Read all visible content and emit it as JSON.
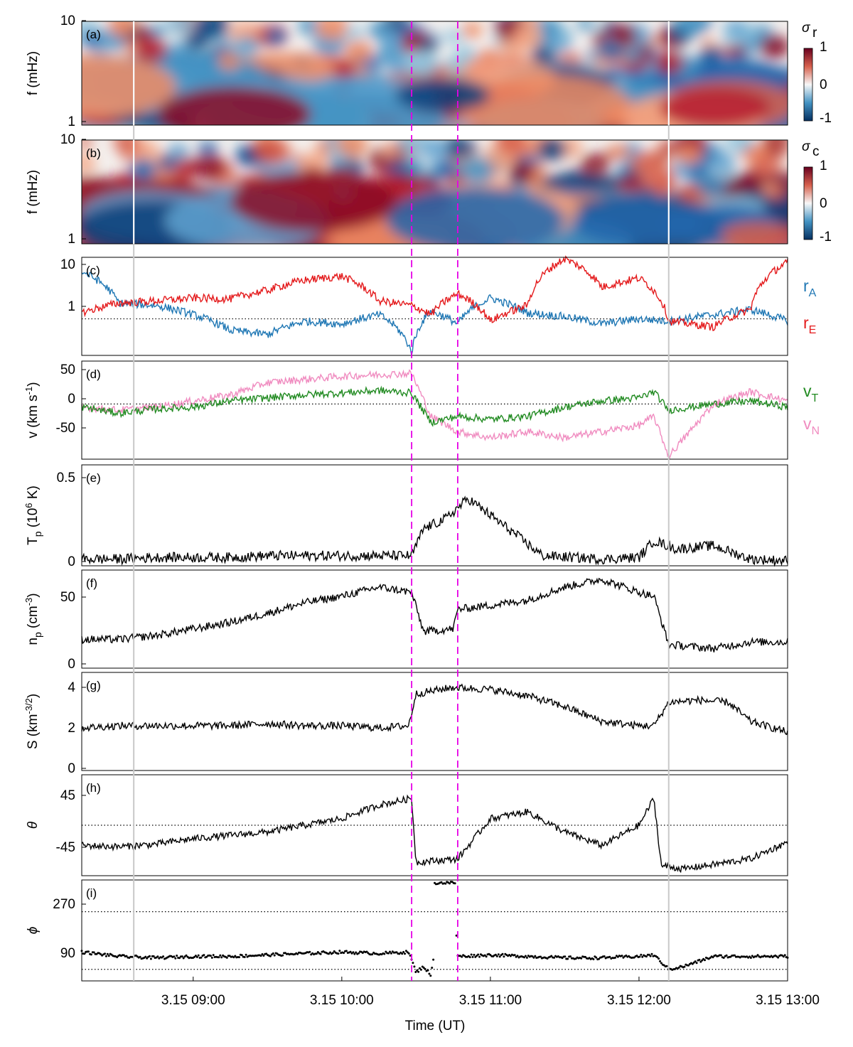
{
  "figure": {
    "xlabel": "Time (UT)",
    "x_ticks": [
      "3.15 09:00",
      "3.15 10:00",
      "3.15 11:00",
      "3.15 12:00",
      "3.15 13:00"
    ],
    "x_tick_hours": [
      9.0,
      10.0,
      11.0,
      12.0,
      13.0
    ],
    "x_range_hours": [
      8.25,
      13.0
    ],
    "magenta_dashed_lines_hours": [
      10.47,
      10.78
    ],
    "gray_vertical_lines_hours": [
      8.6,
      12.2
    ]
  },
  "panels": {
    "a": {
      "label": "(a)",
      "ylabel": "f (mHz)",
      "yticks": [
        "10",
        "1"
      ],
      "cbar_title": "σ",
      "cbar_sub": "r",
      "cbar_ticks": [
        "1",
        "0",
        "-1"
      ]
    },
    "b": {
      "label": "(b)",
      "ylabel": "f (mHz)",
      "yticks": [
        "10",
        "1"
      ],
      "cbar_title": "σ",
      "cbar_sub": "c",
      "cbar_ticks": [
        "1",
        "0",
        "-1"
      ]
    },
    "c": {
      "label": "(c)",
      "yticks": [
        "10",
        "1"
      ],
      "legend": [
        {
          "main": "r",
          "sub": "A",
          "color": "#1f77b4"
        },
        {
          "main": "r",
          "sub": "E",
          "color": "#e41a1c"
        }
      ]
    },
    "d": {
      "label": "(d)",
      "ylabel": "v (km s",
      "ylabel_sup": "-1",
      "ylabel_end": ")",
      "yticks": [
        "50",
        "0",
        "-50"
      ],
      "legend": [
        {
          "main": "v",
          "sub": "T",
          "color": "#228b22"
        },
        {
          "main": "v",
          "sub": "N",
          "color": "#f08cc0"
        }
      ]
    },
    "e": {
      "label": "(e)",
      "ylabel": "T",
      "ylabel_sub": "p",
      "ylabel_rest": " (10",
      "ylabel_sup": "6",
      "ylabel_end": " K)",
      "yticks": [
        "0.5",
        "0"
      ]
    },
    "f": {
      "label": "(f)",
      "ylabel": "n",
      "ylabel_sub": "p",
      "ylabel_rest": " (cm",
      "ylabel_sup": "-3",
      "ylabel_end": ")",
      "yticks": [
        "50",
        "0"
      ]
    },
    "g": {
      "label": "(g)",
      "ylabel": "S (km",
      "ylabel_sup": "-3/2",
      "ylabel_end": ")",
      "yticks": [
        "4",
        "2",
        "0"
      ]
    },
    "h": {
      "label": "(h)",
      "ylabel": "θ",
      "yticks": [
        "45",
        "-45"
      ]
    },
    "i": {
      "label": "(i)",
      "ylabel": "ϕ",
      "yticks": [
        "270",
        "90"
      ]
    }
  },
  "chart_data": [
    {
      "panel": "a",
      "type": "heatmap",
      "title": "",
      "xlabel": "",
      "ylabel": "f (mHz)",
      "ylim": [
        1,
        10
      ],
      "yscale": "log",
      "colorbar": "σ_r",
      "clim": [
        -1,
        1
      ],
      "colormap": "red-white-blue"
    },
    {
      "panel": "b",
      "type": "heatmap",
      "title": "",
      "xlabel": "",
      "ylabel": "f (mHz)",
      "ylim": [
        1,
        10
      ],
      "yscale": "log",
      "colorbar": "σ_c",
      "clim": [
        -1,
        1
      ],
      "colormap": "red-white-blue"
    },
    {
      "panel": "c",
      "type": "line",
      "yscale": "log",
      "ylim": [
        0.2,
        15
      ],
      "reference_line": 1,
      "x_hours": [
        8.25,
        8.5,
        8.75,
        9.0,
        9.25,
        9.5,
        9.75,
        10.0,
        10.25,
        10.47,
        10.6,
        10.78,
        11.0,
        11.25,
        11.5,
        11.75,
        12.0,
        12.2,
        12.5,
        12.75,
        13.0
      ],
      "series": [
        {
          "name": "r_A",
          "color": "#1f77b4",
          "values": [
            8,
            2,
            1.8,
            1.2,
            0.6,
            0.5,
            0.9,
            0.8,
            1.2,
            0.22,
            1.4,
            0.8,
            2.5,
            1.3,
            1.1,
            0.8,
            1.0,
            0.9,
            1.2,
            1.5,
            0.9
          ]
        },
        {
          "name": "r_E",
          "color": "#e41a1c",
          "values": [
            1.3,
            2,
            2.2,
            2.5,
            2.4,
            3.5,
            5.5,
            6.5,
            2.2,
            1.8,
            1.2,
            3,
            0.9,
            1.8,
            14,
            4,
            6,
            0.9,
            0.7,
            1.5,
            12
          ]
        }
      ]
    },
    {
      "panel": "d",
      "type": "line",
      "ylabel": "v (km s-1)",
      "ylim": [
        -90,
        70
      ],
      "reference_line": 0,
      "x_hours": [
        8.25,
        8.5,
        8.75,
        9.0,
        9.25,
        9.5,
        9.75,
        10.0,
        10.25,
        10.47,
        10.6,
        10.78,
        11.0,
        11.25,
        11.5,
        11.75,
        12.0,
        12.1,
        12.2,
        12.5,
        12.75,
        13.0
      ],
      "series": [
        {
          "name": "v_T",
          "color": "#228b22",
          "values": [
            -5,
            -15,
            -8,
            -5,
            5,
            10,
            15,
            18,
            22,
            18,
            -30,
            -20,
            -25,
            -20,
            -5,
            5,
            10,
            20,
            -10,
            0,
            5,
            -5
          ]
        },
        {
          "name": "v_N",
          "color": "#f08cc0",
          "values": [
            -5,
            -10,
            -5,
            5,
            15,
            35,
            40,
            45,
            48,
            50,
            -20,
            -45,
            -55,
            -45,
            -55,
            -45,
            -35,
            -20,
            -85,
            0,
            20,
            5
          ]
        }
      ]
    },
    {
      "panel": "e",
      "type": "line",
      "ylabel": "T_p (10^6 K)",
      "ylim": [
        0,
        0.6
      ],
      "x_hours": [
        8.25,
        8.5,
        8.75,
        9.0,
        9.25,
        9.5,
        9.75,
        10.0,
        10.25,
        10.47,
        10.55,
        10.7,
        10.85,
        11.0,
        11.15,
        11.35,
        11.75,
        12.0,
        12.1,
        12.25,
        12.5,
        12.75,
        13.0
      ],
      "values": [
        0.04,
        0.04,
        0.05,
        0.05,
        0.05,
        0.06,
        0.06,
        0.06,
        0.06,
        0.06,
        0.22,
        0.28,
        0.4,
        0.3,
        0.2,
        0.06,
        0.04,
        0.05,
        0.15,
        0.1,
        0.12,
        0.04,
        0.03
      ]
    },
    {
      "panel": "f",
      "type": "line",
      "ylabel": "n_p (cm-3)",
      "ylim": [
        0,
        75
      ],
      "x_hours": [
        8.25,
        8.5,
        8.75,
        9.0,
        9.25,
        9.5,
        9.75,
        10.0,
        10.25,
        10.47,
        10.55,
        10.75,
        10.78,
        11.0,
        11.25,
        11.5,
        11.75,
        12.0,
        12.1,
        12.2,
        12.5,
        12.75,
        13.0
      ],
      "values": [
        22,
        22,
        25,
        30,
        35,
        42,
        50,
        55,
        62,
        58,
        28,
        30,
        45,
        48,
        52,
        62,
        68,
        58,
        55,
        18,
        15,
        20,
        20
      ]
    },
    {
      "panel": "g",
      "type": "line",
      "ylabel": "S (km-3/2)",
      "ylim": [
        0,
        4.6
      ],
      "x_hours": [
        8.25,
        8.5,
        8.75,
        9.0,
        9.25,
        9.5,
        9.75,
        10.0,
        10.25,
        10.45,
        10.5,
        10.75,
        11.0,
        11.25,
        11.5,
        11.75,
        12.0,
        12.1,
        12.2,
        12.4,
        12.6,
        12.75,
        13.0
      ],
      "values": [
        2.0,
        2.1,
        2.1,
        2.1,
        2.1,
        2.2,
        2.1,
        2.1,
        2.0,
        2.1,
        3.6,
        3.9,
        3.8,
        3.5,
        3.0,
        2.3,
        2.1,
        2.1,
        3.2,
        3.3,
        3.2,
        2.3,
        1.8
      ]
    },
    {
      "panel": "h",
      "type": "line",
      "ylabel": "θ",
      "ylim": [
        -75,
        75
      ],
      "reference_line": 0,
      "x_hours": [
        8.25,
        8.5,
        8.75,
        9.0,
        9.25,
        9.5,
        9.75,
        10.0,
        10.25,
        10.47,
        10.5,
        10.78,
        11.0,
        11.25,
        11.5,
        11.75,
        12.0,
        12.1,
        12.15,
        12.3,
        12.75,
        13.0
      ],
      "values": [
        -30,
        -32,
        -28,
        -20,
        -15,
        -10,
        0,
        10,
        30,
        40,
        -55,
        -50,
        10,
        20,
        -10,
        -30,
        0,
        40,
        -60,
        -65,
        -50,
        -25
      ]
    },
    {
      "panel": "i",
      "type": "scatter",
      "ylabel": "ϕ",
      "ylim": [
        30,
        380
      ],
      "reference_lines": [
        270,
        70
      ],
      "x_hours": [
        8.25,
        8.5,
        8.75,
        9.0,
        9.25,
        9.5,
        9.75,
        10.0,
        10.25,
        10.45,
        10.5,
        10.55,
        10.6,
        10.7,
        10.75,
        10.78,
        11.0,
        11.25,
        11.5,
        11.75,
        12.0,
        12.1,
        12.2,
        12.3,
        12.5,
        12.75,
        13.0
      ],
      "values": [
        130,
        115,
        110,
        115,
        115,
        120,
        125,
        130,
        125,
        130,
        60,
        80,
        50,
        370,
        365,
        115,
        120,
        115,
        110,
        110,
        115,
        120,
        70,
        80,
        115,
        115,
        115
      ]
    }
  ]
}
